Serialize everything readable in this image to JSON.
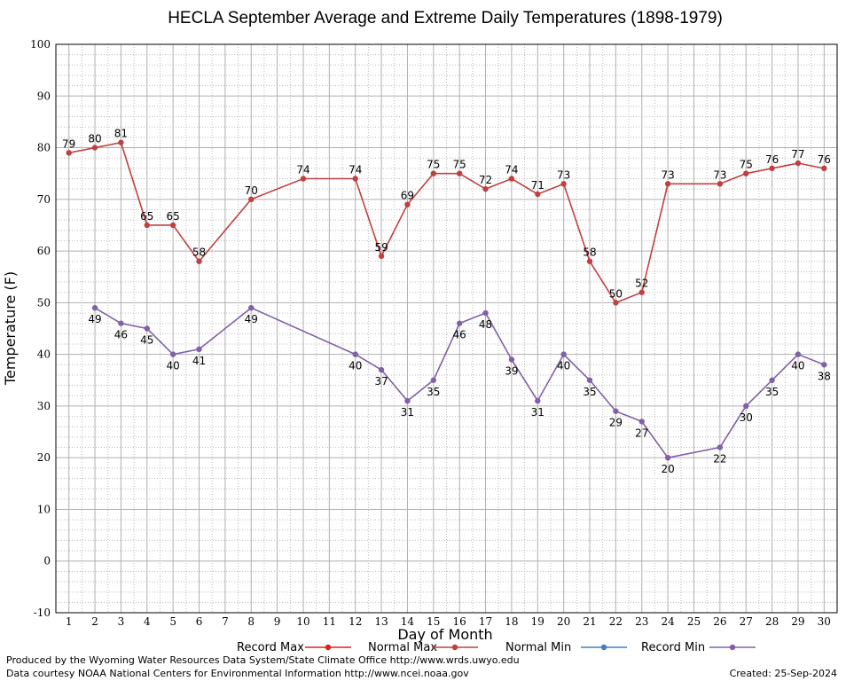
{
  "chart_data": {
    "type": "line",
    "title": "HECLA September Average and Extreme Daily Temperatures (1898-1979)",
    "xlabel": "Day of Month",
    "ylabel": "Temperature (F)",
    "ylim": [
      -10,
      100
    ],
    "yticks": [
      "-10",
      "0",
      "10",
      "20",
      "30",
      "40",
      "50",
      "60",
      "70",
      "80",
      "90",
      "100"
    ],
    "xticks": [
      "1",
      "2",
      "3",
      "4",
      "5",
      "6",
      "7",
      "8",
      "9",
      "10",
      "11",
      "12",
      "13",
      "14",
      "15",
      "16",
      "17",
      "18",
      "19",
      "20",
      "21",
      "22",
      "23",
      "24",
      "25",
      "26",
      "27",
      "28",
      "29",
      "30"
    ],
    "grid": true,
    "legend_position": "bottom",
    "series": [
      {
        "name": "Record Max",
        "color": "#c04040",
        "points": [
          {
            "x": 1,
            "y": 79
          },
          {
            "x": 2,
            "y": 80
          },
          {
            "x": 3,
            "y": 81
          },
          {
            "x": 4,
            "y": 65
          },
          {
            "x": 5,
            "y": 65
          },
          {
            "x": 6,
            "y": 58
          },
          {
            "x": 8,
            "y": 70
          },
          {
            "x": 10,
            "y": 74
          },
          {
            "x": 12,
            "y": 74
          },
          {
            "x": 13,
            "y": 59
          },
          {
            "x": 14,
            "y": 69
          },
          {
            "x": 15,
            "y": 75
          },
          {
            "x": 16,
            "y": 75
          },
          {
            "x": 17,
            "y": 72
          },
          {
            "x": 18,
            "y": 74
          },
          {
            "x": 19,
            "y": 71
          },
          {
            "x": 20,
            "y": 73
          },
          {
            "x": 21,
            "y": 58
          },
          {
            "x": 22,
            "y": 50
          },
          {
            "x": 23,
            "y": 52
          },
          {
            "x": 24,
            "y": 73
          },
          {
            "x": 26,
            "y": 73
          },
          {
            "x": 27,
            "y": 75
          },
          {
            "x": 28,
            "y": 76
          },
          {
            "x": 29,
            "y": 77
          },
          {
            "x": 30,
            "y": 76
          }
        ],
        "label_side": "above"
      },
      {
        "name": "Record Min",
        "color": "#8060a8",
        "points": [
          {
            "x": 2,
            "y": 49
          },
          {
            "x": 3,
            "y": 46
          },
          {
            "x": 4,
            "y": 45
          },
          {
            "x": 5,
            "y": 40
          },
          {
            "x": 6,
            "y": 41
          },
          {
            "x": 8,
            "y": 49
          },
          {
            "x": 12,
            "y": 40
          },
          {
            "x": 13,
            "y": 37
          },
          {
            "x": 14,
            "y": 31
          },
          {
            "x": 15,
            "y": 35
          },
          {
            "x": 16,
            "y": 46
          },
          {
            "x": 17,
            "y": 48
          },
          {
            "x": 18,
            "y": 39
          },
          {
            "x": 19,
            "y": 31
          },
          {
            "x": 20,
            "y": 40
          },
          {
            "x": 21,
            "y": 35
          },
          {
            "x": 22,
            "y": 29
          },
          {
            "x": 23,
            "y": 27
          },
          {
            "x": 24,
            "y": 20
          },
          {
            "x": 26,
            "y": 22
          },
          {
            "x": 27,
            "y": 30
          },
          {
            "x": 28,
            "y": 35
          },
          {
            "x": 29,
            "y": 40
          },
          {
            "x": 30,
            "y": 38
          }
        ],
        "label_side": "below"
      }
    ],
    "legend": [
      {
        "label": "Record Max",
        "color": "#e02020"
      },
      {
        "label": "Normal Max",
        "color": "#c04040"
      },
      {
        "label": "Normal Min",
        "color": "#4080c0"
      },
      {
        "label": "Record Min",
        "color": "#8060a8"
      }
    ]
  },
  "footer": {
    "produced_by": "Produced by the Wyoming Water Resources Data System/State Climate Office http://www.wrds.uwyo.edu",
    "courtesy": "Data courtesy NOAA National Centers for Environmental Information http://www.ncei.noaa.gov",
    "created": "Created:  25-Sep-2024"
  }
}
